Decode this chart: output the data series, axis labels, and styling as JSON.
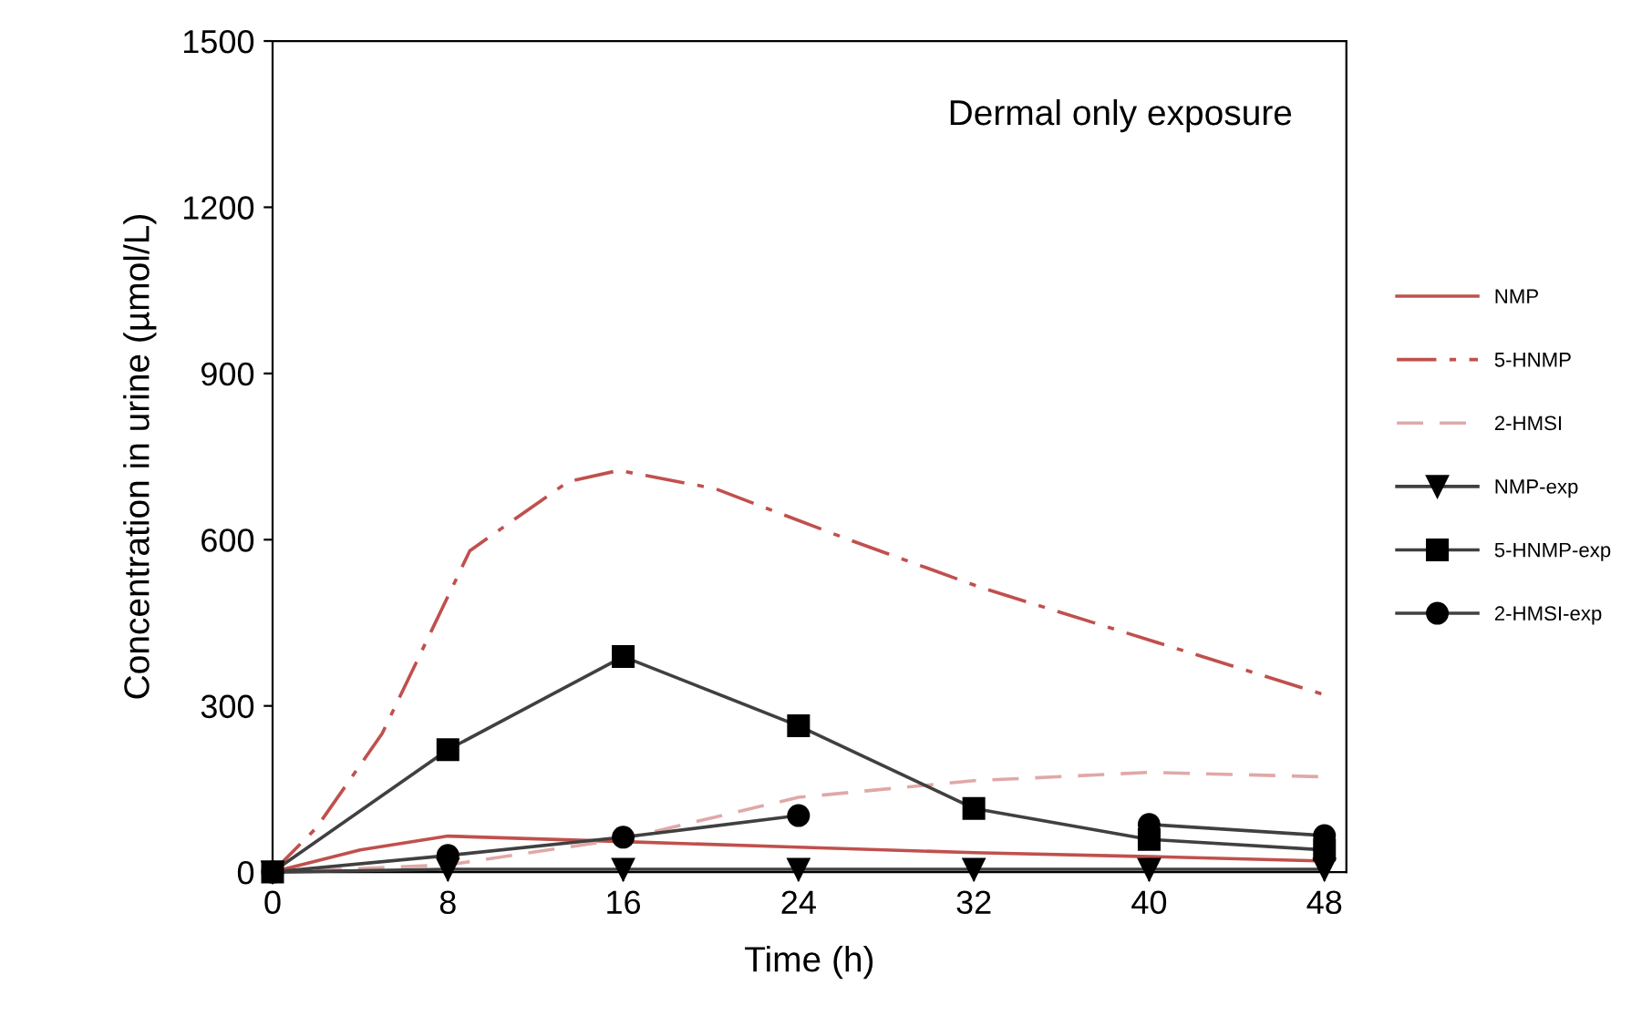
{
  "chart_data": {
    "type": "line",
    "xlabel": "Time (h)",
    "ylabel": "Concentration in urine (µmol/L)",
    "annotations": [
      "Dermal only exposure"
    ],
    "xlim": [
      0,
      49
    ],
    "ylim": [
      0,
      1500
    ],
    "xticks": [
      0,
      8,
      16,
      24,
      32,
      40,
      48
    ],
    "yticks": [
      0,
      300,
      600,
      900,
      1200,
      1500
    ],
    "grid": false,
    "legend": "right",
    "series": [
      {
        "name": "NMP",
        "color": "#c0504d",
        "line_style": "solid",
        "marker": "none",
        "x": [
          0,
          4,
          8,
          16,
          24,
          32,
          40,
          48
        ],
        "values": [
          0,
          40,
          65,
          55,
          45,
          35,
          28,
          20
        ]
      },
      {
        "name": "5-HNMP",
        "color": "#c0504d",
        "line_style": "dashdot",
        "marker": "none",
        "x": [
          0,
          2,
          5,
          9,
          13.5,
          15.8,
          20.2,
          26.3,
          32.3,
          38.7,
          48
        ],
        "values": [
          0,
          80,
          250,
          580,
          705,
          725,
          692,
          600,
          514,
          435,
          320
        ]
      },
      {
        "name": "2-HMSI",
        "color": "#e0a8a8",
        "line_style": "dashed",
        "marker": "none",
        "x": [
          0,
          8,
          16,
          24,
          32,
          40,
          48
        ],
        "values": [
          0,
          13,
          60,
          135,
          165,
          180,
          172
        ]
      },
      {
        "name": "NMP-exp",
        "color": "#404040",
        "line_style": "solid",
        "marker": "triangle",
        "x": [
          0,
          8,
          16,
          24,
          32,
          40,
          48
        ],
        "values": [
          0,
          5,
          5,
          5,
          5,
          5,
          5
        ]
      },
      {
        "name": "5-HNMP-exp",
        "color": "#404040",
        "line_style": "solid",
        "marker": "square",
        "x": [
          0,
          8,
          16,
          24,
          32,
          40,
          48
        ],
        "values": [
          0,
          221,
          389,
          264,
          115,
          59,
          40
        ]
      },
      {
        "name": "2-HMSI-exp",
        "color": "#404040",
        "line_style": "solid",
        "marker": "circle",
        "x": [
          0,
          8,
          16,
          24,
          32,
          40,
          48
        ],
        "values": [
          0,
          30,
          63,
          102,
          null,
          86,
          66
        ]
      }
    ]
  }
}
